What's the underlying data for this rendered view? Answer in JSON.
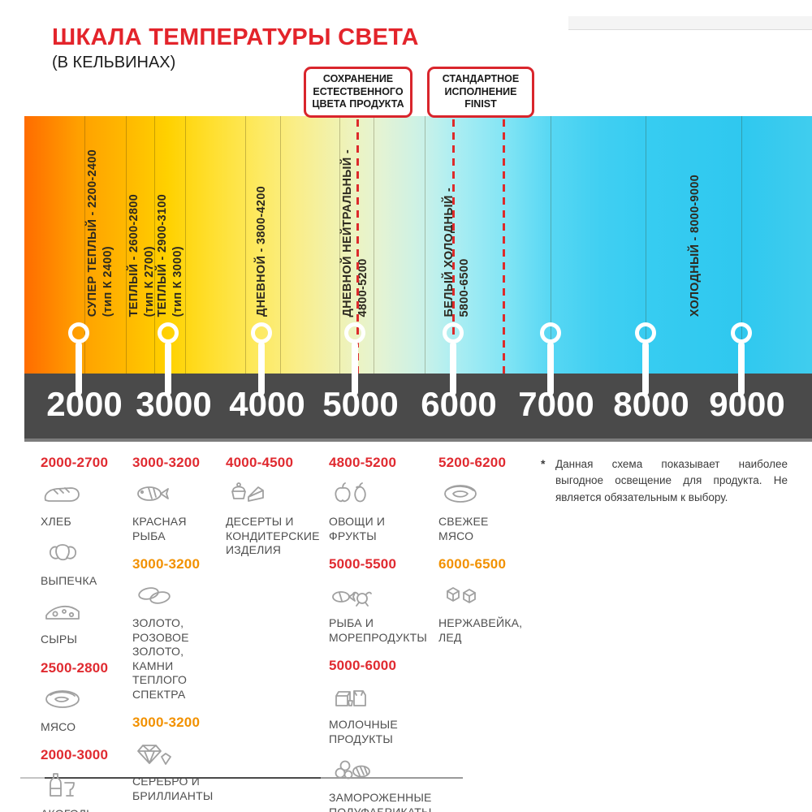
{
  "title": "ШКАЛА ТЕМПЕРАТУРЫ СВЕТА",
  "subtitle": "(В КЕЛЬВИНАХ)",
  "colors": {
    "title_red": "#e3242b",
    "range_red": "#e02a30",
    "range_orange": "#f29100",
    "band_gray": "#4a4a4a",
    "dash_red": "#dd2b2b",
    "gradient_warm": "#ff6c00",
    "gradient_cool": "#2fc8ef"
  },
  "callouts": [
    {
      "text": "СОХРАНЕНИЕ\nЕСТЕСТВЕННОГО\nЦВЕТА ПРОДУКТА"
    },
    {
      "text": "СТАНДАРТНОЕ\nИСПОЛНЕНИЕ\nFINIST"
    }
  ],
  "zones": [
    {
      "name": "СУПЕР ТЕПЛЫЙ - 2200-2400",
      "type": "(тип К 2400)"
    },
    {
      "name": "ТЕПЛЫЙ - 2600-2800",
      "type": "(тип К 2700)"
    },
    {
      "name": "ТЕПЛЫЙ - 2900-3100",
      "type": "(тип К 3000)"
    },
    {
      "name": "ДНЕВНОЙ - 3800-4200",
      "type": ""
    },
    {
      "name": "ДНЕВНОЙ НЕЙТРАЛЬНЫЙ -",
      "type": "4800-5200"
    },
    {
      "name": "БЕЛЫЙ ХОЛОДНЫЙ -",
      "type": "5800-6500"
    },
    {
      "name": "ХОЛОДНЫЙ - 8000-9000",
      "type": ""
    }
  ],
  "scale_ticks": [
    "2000",
    "3000",
    "4000",
    "5000",
    "6000",
    "7000",
    "8000",
    "9000"
  ],
  "product_columns": [
    {
      "groups": [
        {
          "range": "2000-2700",
          "color": "red",
          "items": [
            {
              "icon": "bread-icon",
              "label": "ХЛЕБ"
            },
            {
              "icon": "croissant-icon",
              "label": "ВЫПЕЧКА"
            },
            {
              "icon": "cheese-icon",
              "label": "СЫРЫ"
            }
          ]
        },
        {
          "range": "2500-2800",
          "color": "red",
          "items": [
            {
              "icon": "meat-icon",
              "label": "МЯСО"
            }
          ]
        },
        {
          "range": "2000-3000",
          "color": "red",
          "items": [
            {
              "icon": "alcohol-icon",
              "label": "АКОГОЛЬ"
            }
          ]
        }
      ]
    },
    {
      "groups": [
        {
          "range": "3000-3200",
          "color": "red",
          "items": [
            {
              "icon": "fish-icon",
              "label": "КРАСНАЯ\nРЫБА"
            }
          ]
        },
        {
          "range": "3000-3200",
          "color": "orange",
          "items": [
            {
              "icon": "rings-icon",
              "label": "ЗОЛОТО,\nРОЗОВОЕ ЗОЛОТО,\nКАМНИ ТЕПЛОГО\nСПЕКТРА"
            }
          ]
        },
        {
          "range": "3000-3200",
          "color": "orange",
          "items": [
            {
              "icon": "diamond-icon",
              "label": "СЕРЕБРО И\nБРИЛЛИАНТЫ"
            }
          ]
        }
      ]
    },
    {
      "groups": [
        {
          "range": "4000-4500",
          "color": "red",
          "items": [
            {
              "icon": "desserts-icon",
              "label": "ДЕСЕРТЫ И\nКОНДИТЕРСКИЕ\nИЗДЕЛИЯ"
            }
          ]
        }
      ]
    },
    {
      "groups": [
        {
          "range": "4800-5200",
          "color": "red",
          "items": [
            {
              "icon": "vegetables-icon",
              "label": "ОВОЩИ И\nФРУКТЫ"
            }
          ]
        },
        {
          "range": "5000-5500",
          "color": "red",
          "items": [
            {
              "icon": "seafood-icon",
              "label": "РЫБА И\nМОРЕПРОДУКТЫ"
            }
          ]
        },
        {
          "range": "5000-6000",
          "color": "red",
          "items": [
            {
              "icon": "dairy-icon",
              "label": "МОЛОЧНЫЕ ПРОДУКТЫ"
            },
            {
              "icon": "frozen-icon",
              "label": "ЗАМОРОЖЕННЫЕ\nПОЛУФАБРИКАТЫ"
            }
          ]
        }
      ]
    },
    {
      "groups": [
        {
          "range": "5200-6200",
          "color": "red",
          "items": [
            {
              "icon": "fresh-meat-icon",
              "label": "СВЕЖЕЕ\nМЯСО"
            }
          ]
        },
        {
          "range": "6000-6500",
          "color": "orange",
          "items": [
            {
              "icon": "ice-icon",
              "label": "НЕРЖАВЕЙКА,\nЛЕД"
            }
          ]
        }
      ]
    }
  ],
  "footnote": {
    "marker": "*",
    "text": "Данная схема показывает наиболее выгодное освещение для продукта. Не является обязательным к выбору."
  }
}
